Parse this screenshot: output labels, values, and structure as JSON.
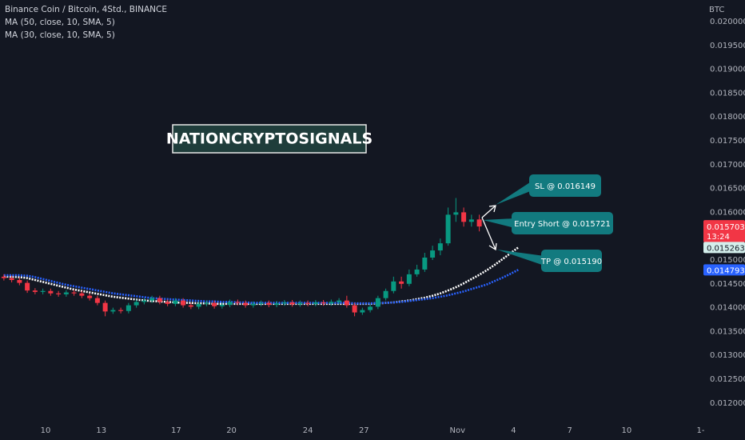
{
  "chart_data": {
    "type": "candlestick",
    "title": "Binance Coin / Bitcoin, 4Std., BINANCE",
    "unit": "BTC",
    "up_color": "#089981",
    "down_color": "#f23645",
    "open": [
      0.01465,
      0.01462,
      0.01458,
      0.01452,
      0.01436,
      0.01433,
      0.01435,
      0.0143,
      0.01428,
      0.01432,
      0.0143,
      0.01425,
      0.0142,
      0.0141,
      0.01392,
      0.01395,
      0.01393,
      0.01405,
      0.01412,
      0.01415,
      0.0142,
      0.01412,
      0.01408,
      0.01415,
      0.01405,
      0.01402,
      0.01408,
      0.0141,
      0.01403,
      0.01406,
      0.01412,
      0.0141,
      0.01405,
      0.01408,
      0.0141,
      0.01406,
      0.01409,
      0.01411,
      0.01407,
      0.0141,
      0.01408,
      0.01411,
      0.01409,
      0.01412,
      0.01415,
      0.01405,
      0.0139,
      0.01395,
      0.01402,
      0.0142,
      0.01435,
      0.01455,
      0.0145,
      0.0147,
      0.0148,
      0.01505,
      0.0152,
      0.01535,
      0.01595,
      0.016,
      0.0158,
      0.01585
    ],
    "high": [
      0.0147,
      0.01467,
      0.01463,
      0.01457,
      0.01441,
      0.0144,
      0.0144,
      0.01435,
      0.01437,
      0.01437,
      0.01435,
      0.0143,
      0.01425,
      0.01415,
      0.014,
      0.014,
      0.0141,
      0.01417,
      0.0142,
      0.01425,
      0.01425,
      0.01417,
      0.0142,
      0.0142,
      0.0141,
      0.01413,
      0.01415,
      0.01415,
      0.01411,
      0.01417,
      0.01417,
      0.01415,
      0.01413,
      0.01415,
      0.01415,
      0.01414,
      0.01416,
      0.01416,
      0.01415,
      0.01415,
      0.01416,
      0.01416,
      0.01417,
      0.0142,
      0.01425,
      0.0141,
      0.014,
      0.01407,
      0.01425,
      0.0144,
      0.01465,
      0.01465,
      0.0148,
      0.0149,
      0.01515,
      0.0153,
      0.01545,
      0.0161,
      0.0163,
      0.0161,
      0.01595,
      0.01595
    ],
    "low": [
      0.01457,
      0.01453,
      0.01447,
      0.01431,
      0.01428,
      0.01428,
      0.01425,
      0.01423,
      0.01423,
      0.01425,
      0.0142,
      0.01415,
      0.01405,
      0.01382,
      0.01387,
      0.01388,
      0.01388,
      0.014,
      0.01407,
      0.0141,
      0.01407,
      0.01403,
      0.01403,
      0.014,
      0.01397,
      0.01397,
      0.01403,
      0.01398,
      0.01398,
      0.01401,
      0.01405,
      0.014,
      0.014,
      0.01403,
      0.01401,
      0.01401,
      0.01404,
      0.01402,
      0.01402,
      0.01403,
      0.01403,
      0.01404,
      0.01404,
      0.01407,
      0.014,
      0.01382,
      0.01385,
      0.0139,
      0.01397,
      0.01415,
      0.0143,
      0.0144,
      0.01445,
      0.01465,
      0.01475,
      0.015,
      0.0151,
      0.0153,
      0.0158,
      0.0157,
      0.0157,
      0.0156
    ],
    "close": [
      0.01462,
      0.01458,
      0.01452,
      0.01436,
      0.01433,
      0.01435,
      0.0143,
      0.01428,
      0.01432,
      0.0143,
      0.01425,
      0.0142,
      0.0141,
      0.01392,
      0.01395,
      0.01393,
      0.01405,
      0.01412,
      0.01415,
      0.0142,
      0.01412,
      0.01408,
      0.01415,
      0.01405,
      0.01402,
      0.01408,
      0.0141,
      0.01403,
      0.01406,
      0.01412,
      0.0141,
      0.01405,
      0.01408,
      0.0141,
      0.01406,
      0.01409,
      0.01411,
      0.01407,
      0.0141,
      0.01408,
      0.01411,
      0.01409,
      0.01412,
      0.01415,
      0.01405,
      0.0139,
      0.01395,
      0.01402,
      0.0142,
      0.01435,
      0.01455,
      0.0145,
      0.0147,
      0.0148,
      0.01505,
      0.0152,
      0.01535,
      0.01595,
      0.016,
      0.0158,
      0.01585,
      0.015703
    ],
    "countdown": "13:24",
    "series": [
      {
        "name": "MA (50, close, 10, SMA, 5)",
        "color": "#ffffff",
        "tag_color": "#d4efec",
        "tag_text": "#131722",
        "values": [
          0.01465,
          0.01465,
          0.01464,
          0.01462,
          0.01458,
          0.01454,
          0.0145,
          0.01446,
          0.01442,
          0.01438,
          0.01435,
          0.01432,
          0.01429,
          0.01426,
          0.01423,
          0.01421,
          0.01419,
          0.01417,
          0.01415,
          0.01414,
          0.01413,
          0.01412,
          0.01411,
          0.0141,
          0.0141,
          0.01409,
          0.01409,
          0.01408,
          0.01408,
          0.01408,
          0.01408,
          0.01408,
          0.01408,
          0.01408,
          0.01408,
          0.01408,
          0.01408,
          0.01408,
          0.01408,
          0.01408,
          0.01408,
          0.01408,
          0.01408,
          0.01408,
          0.01408,
          0.01408,
          0.01408,
          0.01408,
          0.01409,
          0.0141,
          0.01411,
          0.01413,
          0.01415,
          0.01418,
          0.01421,
          0.01425,
          0.0143,
          0.01436,
          0.01443,
          0.01451,
          0.0146,
          0.01469,
          0.01479,
          0.0149,
          0.01502,
          0.01514,
          0.015263
        ]
      },
      {
        "name": "MA (30, close, 10, SMA, 5)",
        "color": "#2962ff",
        "tag_color": "#2962ff",
        "tag_text": "#ffffff",
        "values": [
          0.01468,
          0.01468,
          0.01468,
          0.01467,
          0.01464,
          0.0146,
          0.01456,
          0.01452,
          0.01448,
          0.01445,
          0.01442,
          0.01439,
          0.01436,
          0.01433,
          0.0143,
          0.01428,
          0.01426,
          0.01424,
          0.01422,
          0.0142,
          0.01419,
          0.01418,
          0.01417,
          0.01416,
          0.01415,
          0.01414,
          0.01413,
          0.01413,
          0.01412,
          0.01412,
          0.01411,
          0.01411,
          0.0141,
          0.0141,
          0.0141,
          0.0141,
          0.0141,
          0.0141,
          0.0141,
          0.0141,
          0.0141,
          0.0141,
          0.0141,
          0.0141,
          0.0141,
          0.01409,
          0.01409,
          0.01409,
          0.0141,
          0.0141,
          0.01411,
          0.01412,
          0.01414,
          0.01416,
          0.01418,
          0.0142,
          0.01423,
          0.01426,
          0.0143,
          0.01434,
          0.01439,
          0.01444,
          0.01449,
          0.01456,
          0.01463,
          0.01471,
          0.014793
        ]
      }
    ],
    "xlim": [
      0,
      90.26
    ],
    "xticks": [
      {
        "value": 5.85,
        "label": "10"
      },
      {
        "value": 13.0,
        "label": "13"
      },
      {
        "value": 22.6,
        "label": "17"
      },
      {
        "value": 29.7,
        "label": "20"
      },
      {
        "value": 39.5,
        "label": "24"
      },
      {
        "value": 46.7,
        "label": "27"
      },
      {
        "value": 58.7,
        "label": "Nov"
      },
      {
        "value": 65.9,
        "label": "4"
      },
      {
        "value": 73.1,
        "label": "7"
      },
      {
        "value": 80.4,
        "label": "10"
      },
      {
        "value": 89.9,
        "label": "1-"
      }
    ],
    "ylim": [
      0.011644,
      0.020453
    ],
    "yticks": [
      {
        "value": 0.012,
        "label": "0.012000"
      },
      {
        "value": 0.0125,
        "label": "0.012500"
      },
      {
        "value": 0.013,
        "label": "0.013000"
      },
      {
        "value": 0.0135,
        "label": "0.013500"
      },
      {
        "value": 0.014,
        "label": "0.014000"
      },
      {
        "value": 0.0145,
        "label": "0.014500"
      },
      {
        "value": 0.015,
        "label": "0.015000"
      },
      {
        "value": 0.0155,
        "label": "0.015500"
      },
      {
        "value": 0.016,
        "label": "0.016000"
      },
      {
        "value": 0.0165,
        "label": "0.016500"
      },
      {
        "value": 0.017,
        "label": "0.017000"
      },
      {
        "value": 0.0175,
        "label": "0.017500"
      },
      {
        "value": 0.018,
        "label": "0.018000"
      },
      {
        "value": 0.0185,
        "label": "0.018500"
      },
      {
        "value": 0.019,
        "label": "0.019000"
      },
      {
        "value": 0.0195,
        "label": "0.019500"
      },
      {
        "value": 0.02,
        "label": "0.020000"
      }
    ],
    "watermark": "NATIONCRYPTOSIGNALS",
    "annotations": [
      {
        "text": "SL @ 0.016149"
      },
      {
        "text": "Entry Short @ 0.015721"
      },
      {
        "text": "TP @ 0.015190"
      }
    ]
  }
}
